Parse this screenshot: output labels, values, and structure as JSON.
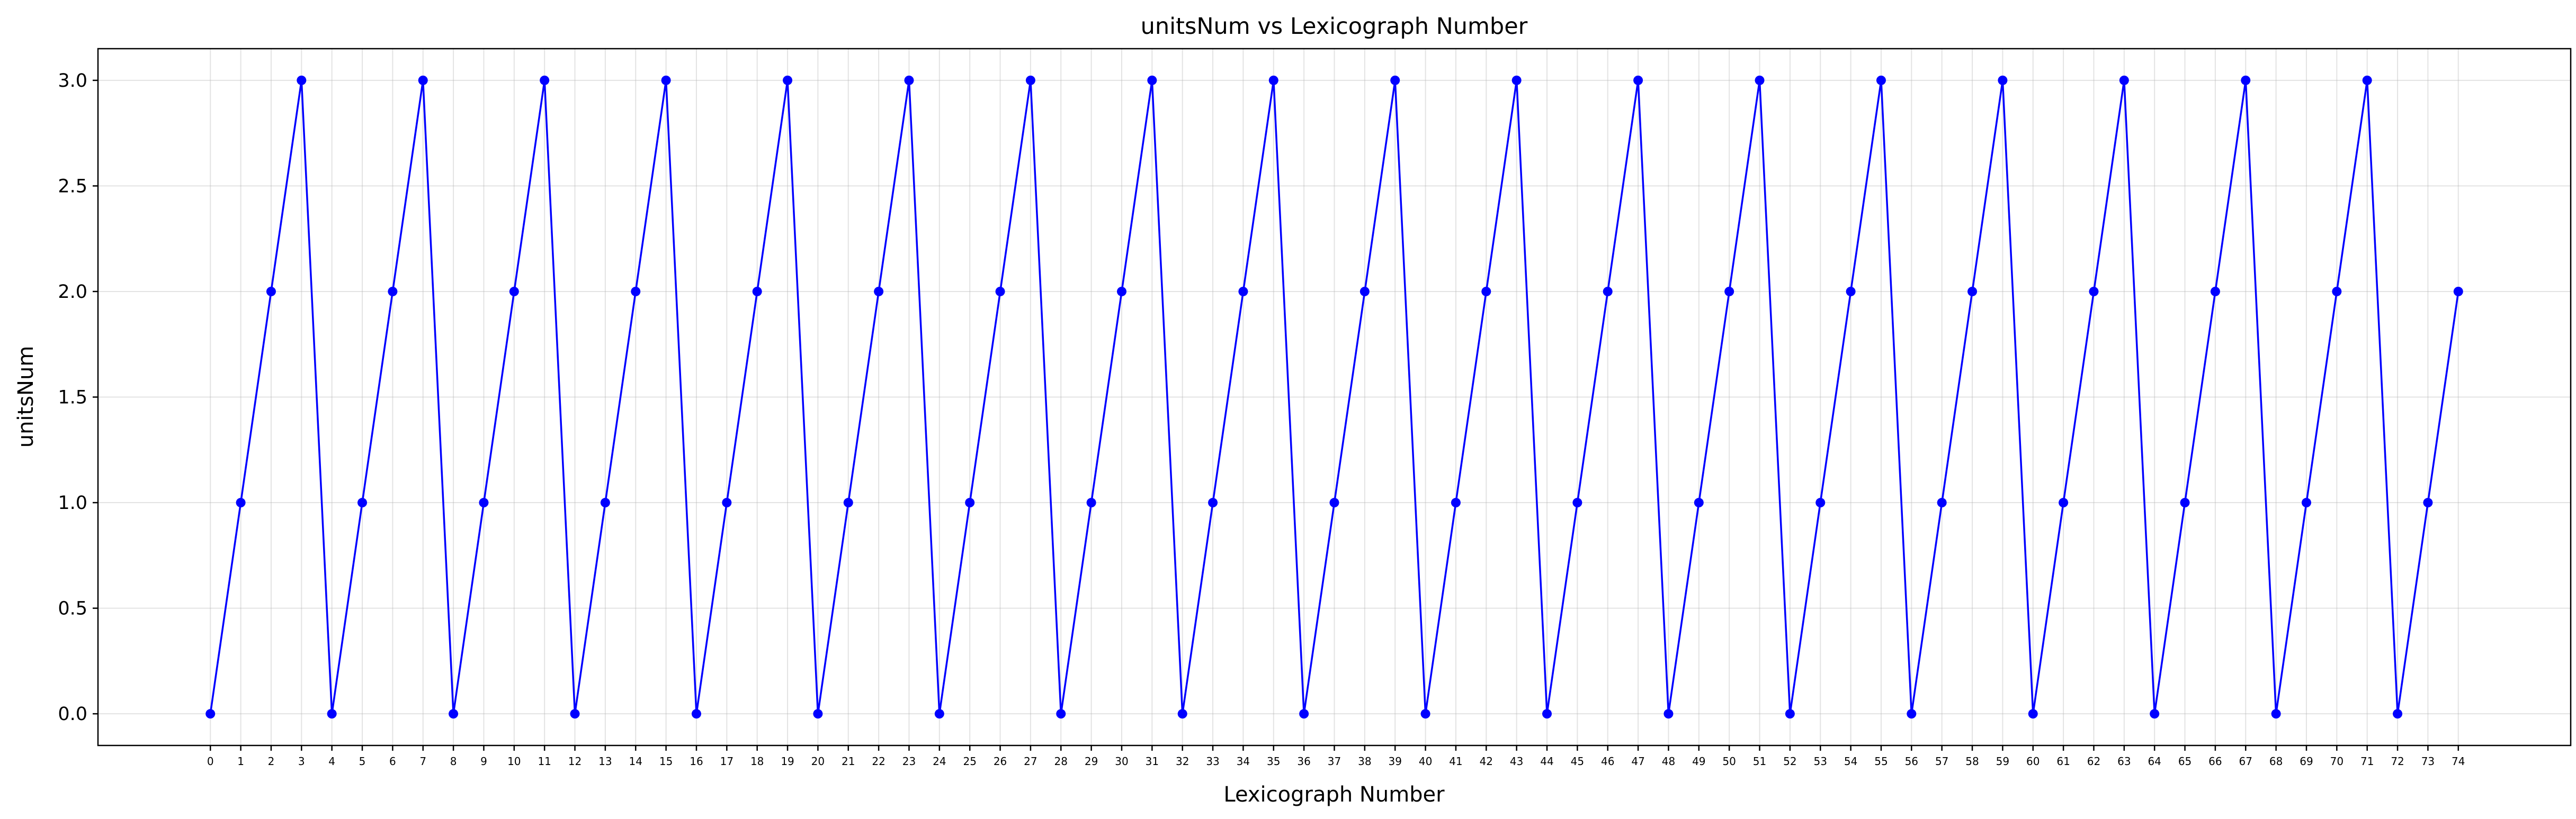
{
  "colors": {
    "series": "#0000ff",
    "background": "#ffffff"
  },
  "chart_data": {
    "type": "line",
    "title": "unitsNum vs Lexicograph Number",
    "xlabel": "Lexicograph Number",
    "ylabel": "unitsNum",
    "xlim": [
      -3.7,
      77.7
    ],
    "ylim": [
      -0.15,
      3.15
    ],
    "yticks": [
      0.0,
      0.5,
      1.0,
      1.5,
      2.0,
      2.5,
      3.0
    ],
    "ytick_labels": [
      "0.0",
      "0.5",
      "1.0",
      "1.5",
      "2.0",
      "2.5",
      "3.0"
    ],
    "x": [
      0,
      1,
      2,
      3,
      4,
      5,
      6,
      7,
      8,
      9,
      10,
      11,
      12,
      13,
      14,
      15,
      16,
      17,
      18,
      19,
      20,
      21,
      22,
      23,
      24,
      25,
      26,
      27,
      28,
      29,
      30,
      31,
      32,
      33,
      34,
      35,
      36,
      37,
      38,
      39,
      40,
      41,
      42,
      43,
      44,
      45,
      46,
      47,
      48,
      49,
      50,
      51,
      52,
      53,
      54,
      55,
      56,
      57,
      58,
      59,
      60,
      61,
      62,
      63,
      64,
      65,
      66,
      67,
      68,
      69,
      70,
      71,
      72,
      73,
      74
    ],
    "grid": true,
    "legend": "none",
    "series": [
      {
        "marker": "circle",
        "values": [
          0,
          1,
          2,
          3,
          0,
          1,
          2,
          3,
          0,
          1,
          2,
          3,
          0,
          1,
          2,
          3,
          0,
          1,
          2,
          3,
          0,
          1,
          2,
          3,
          0,
          1,
          2,
          3,
          0,
          1,
          2,
          3,
          0,
          1,
          2,
          3,
          0,
          1,
          2,
          3,
          0,
          1,
          2,
          3,
          0,
          1,
          2,
          3,
          0,
          1,
          2,
          3,
          0,
          1,
          2,
          3,
          0,
          1,
          2,
          3,
          0,
          1,
          2,
          3,
          0,
          1,
          2,
          3,
          0,
          1,
          2,
          3,
          0,
          1,
          2
        ]
      }
    ]
  }
}
